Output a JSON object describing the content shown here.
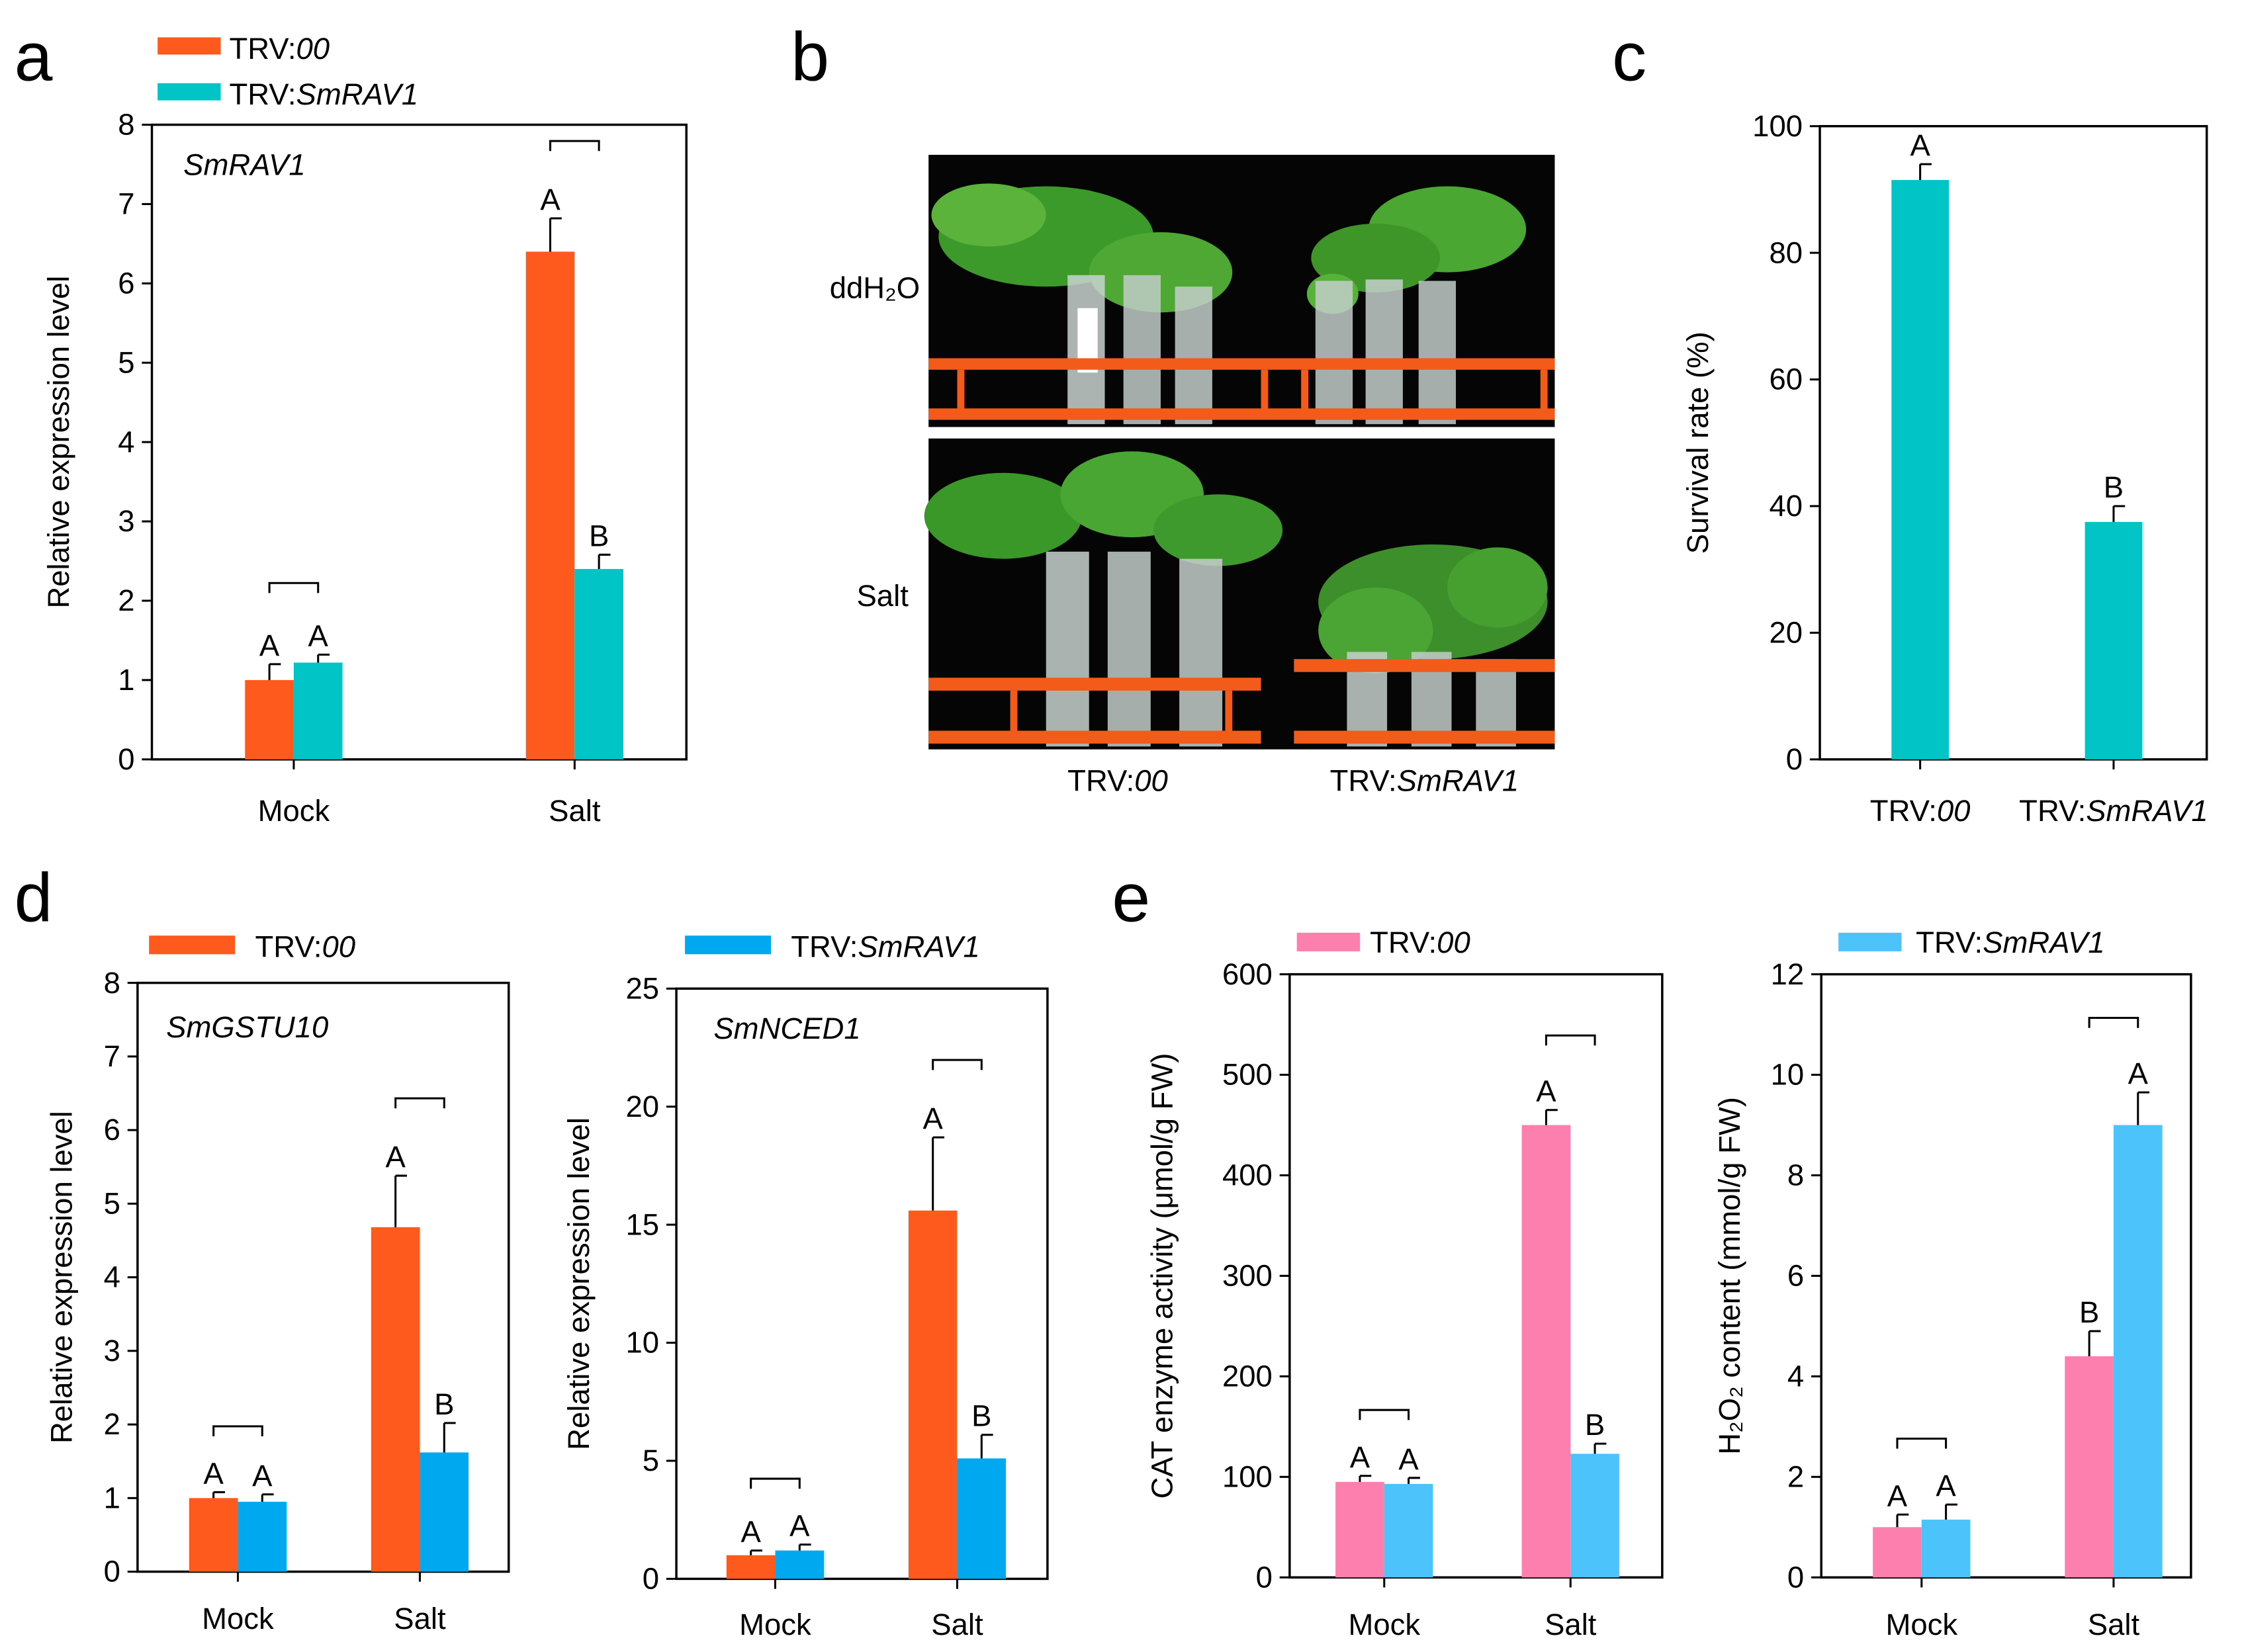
{
  "panel_letters": {
    "a": "a",
    "b": "b",
    "c": "c",
    "d": "d",
    "e": "e"
  },
  "colors": {
    "orange": "#fe5a1d",
    "teal": "#00c4c6",
    "blue": "#00a8f0",
    "pink": "#fd7fae",
    "lightblue": "#4dc3fb",
    "rack": "#f25b19",
    "photo_bg": "#050505"
  },
  "legends": {
    "a": [
      {
        "prefix": "TRV:",
        "italic": "00",
        "color": "#fe5a1d"
      },
      {
        "prefix": "TRV:",
        "italic": "SmRAV1",
        "color": "#00c4c6"
      }
    ],
    "d": [
      {
        "prefix": "TRV:",
        "italic": "00",
        "color": "#fe5a1d"
      },
      {
        "prefix": "TRV:",
        "italic": "SmRAV1",
        "color": "#00a8f0"
      }
    ],
    "e": [
      {
        "prefix": "TRV:",
        "italic": "00",
        "color": "#fd7fae"
      },
      {
        "prefix": "TRV:",
        "italic": "SmRAV1",
        "color": "#4dc3fb"
      }
    ]
  },
  "photo_panel": {
    "row_labels": [
      "ddH₂O",
      "Salt"
    ],
    "col_labels": [
      {
        "prefix": "TRV:",
        "italic": "00"
      },
      {
        "prefix": "TRV:",
        "italic": "SmRAV1"
      }
    ],
    "icons": [
      "plant-photo-ddH2O",
      "plant-photo-salt"
    ]
  },
  "chart_data": [
    {
      "id": "a",
      "type": "bar",
      "gene_label": "SmRAV1",
      "ylabel": "Relative expression level",
      "categories": [
        "Mock",
        "Salt"
      ],
      "ylim": [
        0,
        8
      ],
      "yticks": [
        "0",
        "1",
        "2",
        "3",
        "4",
        "5",
        "6",
        "7",
        "8"
      ],
      "series": [
        {
          "values": [
            1.0,
            6.4
          ],
          "errors": [
            0.2,
            0.42
          ],
          "letters": [
            "A",
            "A"
          ],
          "color": "#fe5a1d"
        },
        {
          "values": [
            1.22,
            2.4
          ],
          "errors": [
            0.1,
            0.18
          ],
          "letters": [
            "A",
            "B"
          ],
          "color": "#00c4c6"
        }
      ]
    },
    {
      "id": "c",
      "type": "bar",
      "ylabel": "Survival rate (%)",
      "categories": [
        "TRV:00",
        "TRV:SmRAV1"
      ],
      "category_parts": [
        {
          "prefix": "TRV:",
          "italic": "00"
        },
        {
          "prefix": "TRV:",
          "italic": "SmRAV1"
        }
      ],
      "ylim": [
        0,
        100
      ],
      "yticks": [
        "0",
        "20",
        "40",
        "60",
        "80",
        "100"
      ],
      "series": [
        {
          "values": [
            91.5,
            37.5
          ],
          "errors": [
            2.5,
            2.5
          ],
          "letters": [
            "A",
            "B"
          ],
          "color": "#00c4c6"
        }
      ]
    },
    {
      "id": "d1",
      "type": "bar",
      "gene_label": "SmGSTU10",
      "ylabel": "Relative expression level",
      "categories": [
        "Mock",
        "Salt"
      ],
      "ylim": [
        0,
        8
      ],
      "yticks": [
        "0",
        "1",
        "2",
        "3",
        "4",
        "5",
        "6",
        "7",
        "8"
      ],
      "series": [
        {
          "values": [
            1.0,
            4.68
          ],
          "errors": [
            0.08,
            0.7
          ],
          "letters": [
            "A",
            "A"
          ],
          "color": "#fe5a1d"
        },
        {
          "values": [
            0.95,
            1.62
          ],
          "errors": [
            0.1,
            0.4
          ],
          "letters": [
            "A",
            "B"
          ],
          "color": "#00a8f0"
        }
      ]
    },
    {
      "id": "d2",
      "type": "bar",
      "gene_label": "SmNCED1",
      "ylabel": "Relative expression level",
      "categories": [
        "Mock",
        "Salt"
      ],
      "ylim": [
        0,
        25
      ],
      "yticks": [
        "0",
        "5",
        "10",
        "15",
        "20",
        "25"
      ],
      "series": [
        {
          "values": [
            1.0,
            15.6
          ],
          "errors": [
            0.2,
            3.1
          ],
          "letters": [
            "A",
            "A"
          ],
          "color": "#fe5a1d"
        },
        {
          "values": [
            1.2,
            5.1
          ],
          "errors": [
            0.25,
            1.0
          ],
          "letters": [
            "A",
            "B"
          ],
          "color": "#00a8f0"
        }
      ]
    },
    {
      "id": "e1",
      "type": "bar",
      "ylabel": "CAT enzyme activity (μmol/g FW)",
      "categories": [
        "Mock",
        "Salt"
      ],
      "ylim": [
        0,
        600
      ],
      "yticks": [
        "0",
        "100",
        "200",
        "300",
        "400",
        "500",
        "600"
      ],
      "series": [
        {
          "values": [
            95,
            450
          ],
          "errors": [
            6,
            15
          ],
          "letters": [
            "A",
            "A"
          ],
          "color": "#fd7fae"
        },
        {
          "values": [
            93,
            123
          ],
          "errors": [
            6,
            10
          ],
          "letters": [
            "A",
            "B"
          ],
          "color": "#4dc3fb"
        }
      ]
    },
    {
      "id": "e2",
      "type": "bar",
      "ylabel": "H₂O₂ content (mmol/g FW)",
      "categories": [
        "Mock",
        "Salt"
      ],
      "ylim": [
        0,
        12
      ],
      "yticks": [
        "0",
        "2",
        "4",
        "6",
        "8",
        "10",
        "12"
      ],
      "series": [
        {
          "values": [
            1.0,
            4.4
          ],
          "errors": [
            0.25,
            0.5
          ],
          "letters": [
            "A",
            "B"
          ],
          "color": "#fd7fae"
        },
        {
          "values": [
            1.15,
            9.0
          ],
          "errors": [
            0.3,
            0.65
          ],
          "letters": [
            "A",
            "A"
          ],
          "color": "#4dc3fb"
        }
      ]
    }
  ]
}
